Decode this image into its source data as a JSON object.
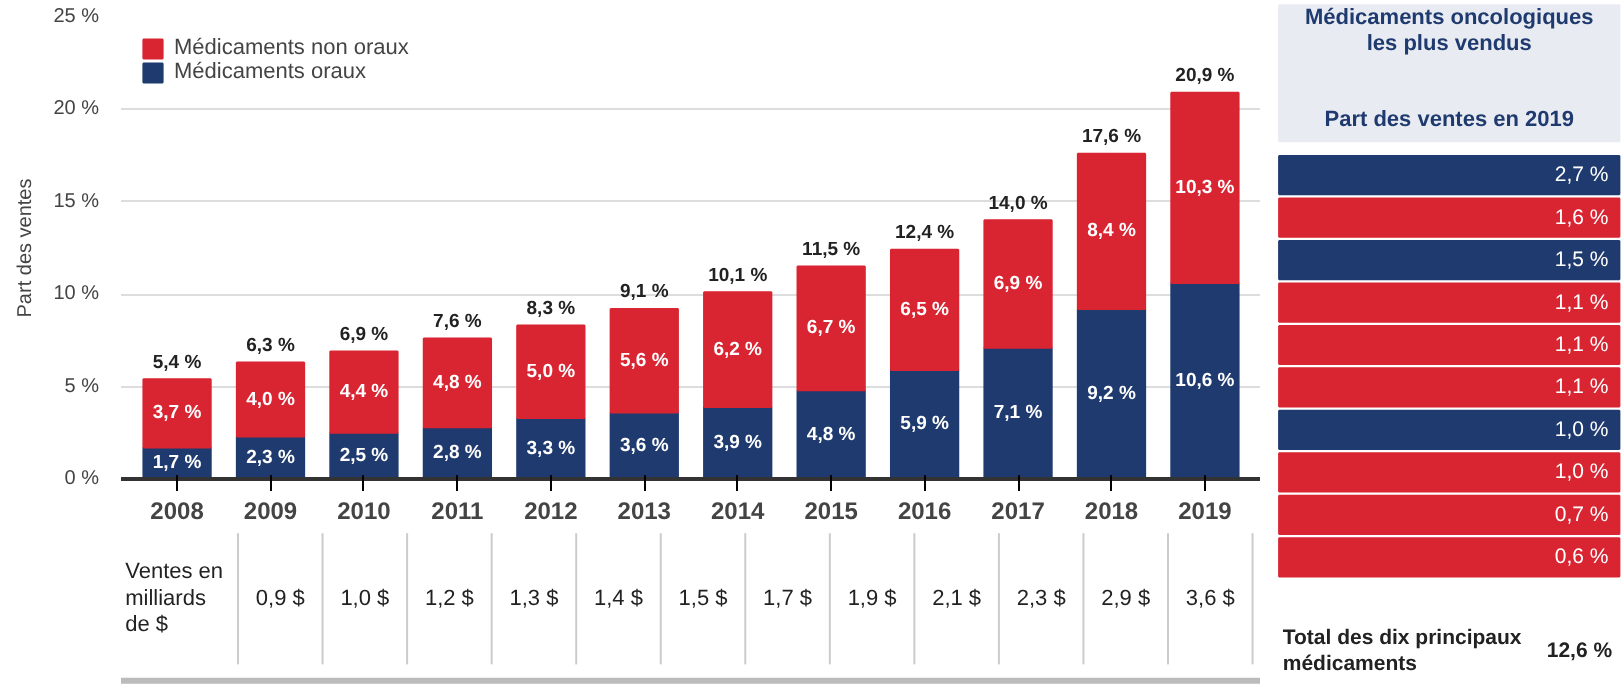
{
  "chart_data": [
    {
      "type": "bar",
      "stacked": true,
      "ylabel": "Part des ventes",
      "categories": [
        "2008",
        "2009",
        "2010",
        "2011",
        "2012",
        "2013",
        "2014",
        "2015",
        "2016",
        "2017",
        "2018",
        "2019"
      ],
      "series": [
        {
          "name": "Médicaments oraux",
          "color": "#1f3a6e",
          "values": [
            1.7,
            2.3,
            2.5,
            2.8,
            3.3,
            3.6,
            3.9,
            4.8,
            5.9,
            7.1,
            9.2,
            10.6
          ],
          "value_labels": [
            "1,7 %",
            "2,3 %",
            "2,5 %",
            "2,8 %",
            "3,3 %",
            "3,6 %",
            "3,9 %",
            "4,8 %",
            "5,9 %",
            "7,1 %",
            "9,2 %",
            "10,6 %"
          ]
        },
        {
          "name": "Médicaments non oraux",
          "color": "#d92432",
          "values": [
            3.7,
            4.0,
            4.4,
            4.8,
            5.0,
            5.6,
            6.2,
            6.7,
            6.5,
            6.9,
            8.4,
            10.3
          ],
          "value_labels": [
            "3,7 %",
            "4,0 %",
            "4,4 %",
            "4,8 %",
            "5,0 %",
            "5,6 %",
            "6,2 %",
            "6,7 %",
            "6,5 %",
            "6,9 %",
            "8,4 %",
            "10,3 %"
          ]
        }
      ],
      "totals": [
        "5,4 %",
        "6,3 %",
        "6,9 %",
        "7,6 %",
        "8,3 %",
        "9,1 %",
        "10,1 %",
        "11,5 %",
        "12,4 %",
        "14,0 %",
        "17,6 %",
        "20,9 %"
      ],
      "ylim": [
        0,
        25
      ],
      "yticks": [
        {
          "value": 0,
          "label": "0 %"
        },
        {
          "value": 5,
          "label": "5 %"
        },
        {
          "value": 10,
          "label": "10 %"
        },
        {
          "value": 15,
          "label": "15 %"
        },
        {
          "value": 20,
          "label": "20 %"
        },
        {
          "value": 25,
          "label": "25 %"
        }
      ],
      "grid": "y",
      "legend": "top left"
    },
    {
      "type": "other",
      "ylabel": "Ventes en milliards de $",
      "values": [
        0.9,
        1.0,
        1.2,
        1.3,
        1.4,
        1.5,
        1.7,
        1.9,
        2.1,
        2.3,
        2.9,
        3.6
      ],
      "value_labels": [
        "0,9 $",
        "1,0 $",
        "1,2 $",
        "1,3 $",
        "1,4 $",
        "1,5 $",
        "1,7 $",
        "1,9 $",
        "2,1 $",
        "2,3 $",
        "2,9 $",
        "3,6 $"
      ]
    },
    {
      "type": "other",
      "title": "Médicaments oncologiques les plus vendus",
      "subtitle": "Part des ventes en 2019",
      "categories": [
        null,
        null,
        null,
        null,
        null,
        null,
        null,
        null,
        null,
        null
      ],
      "values": [
        2.7,
        1.6,
        1.5,
        1.1,
        1.1,
        1.1,
        1.0,
        1.0,
        0.7,
        0.6
      ],
      "value_labels": [
        "2,7 %",
        "1,6 %",
        "1,5 %",
        "1,1 %",
        "1,1 %",
        "1,1 %",
        "1,0 %",
        "1,0 %",
        "0,7 %",
        "0,6 %"
      ],
      "colors": [
        "#1f3a6e",
        "#d92432",
        "#1f3a6e",
        "#d92432",
        "#d92432",
        "#d92432",
        "#1f3a6e",
        "#d92432",
        "#d92432",
        "#d92432"
      ],
      "annotations": [
        "Total des dix principaux médicaments"
      ],
      "totals": [
        "12,6 %"
      ]
    }
  ]
}
